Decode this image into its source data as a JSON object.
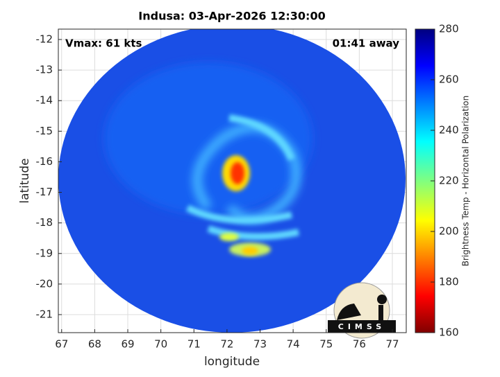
{
  "chart_data": {
    "type": "heatmap",
    "title": "Indusa: 03-Apr-2026 12:30:00",
    "annotations": [
      "Vmax: 61 kts",
      "01:41 away"
    ],
    "xlabel": "longitude",
    "ylabel": "latitude",
    "xlim": [
      66.9,
      77.42
    ],
    "xticks": [
      67,
      68,
      69,
      70,
      71,
      72,
      73,
      74,
      75,
      76,
      77
    ],
    "ylim": [
      -21.59,
      -11.66
    ],
    "yticks": [
      -12,
      -13,
      -14,
      -15,
      -16,
      -17,
      -18,
      -19,
      -20,
      -21
    ],
    "grid": true,
    "colorbar": {
      "label": "Brightness Temp - Horizontal Polarization",
      "lim": [
        160,
        280
      ],
      "ticks": [
        160,
        180,
        200,
        220,
        240,
        260,
        280
      ]
    },
    "logo": "CIMSS"
  }
}
